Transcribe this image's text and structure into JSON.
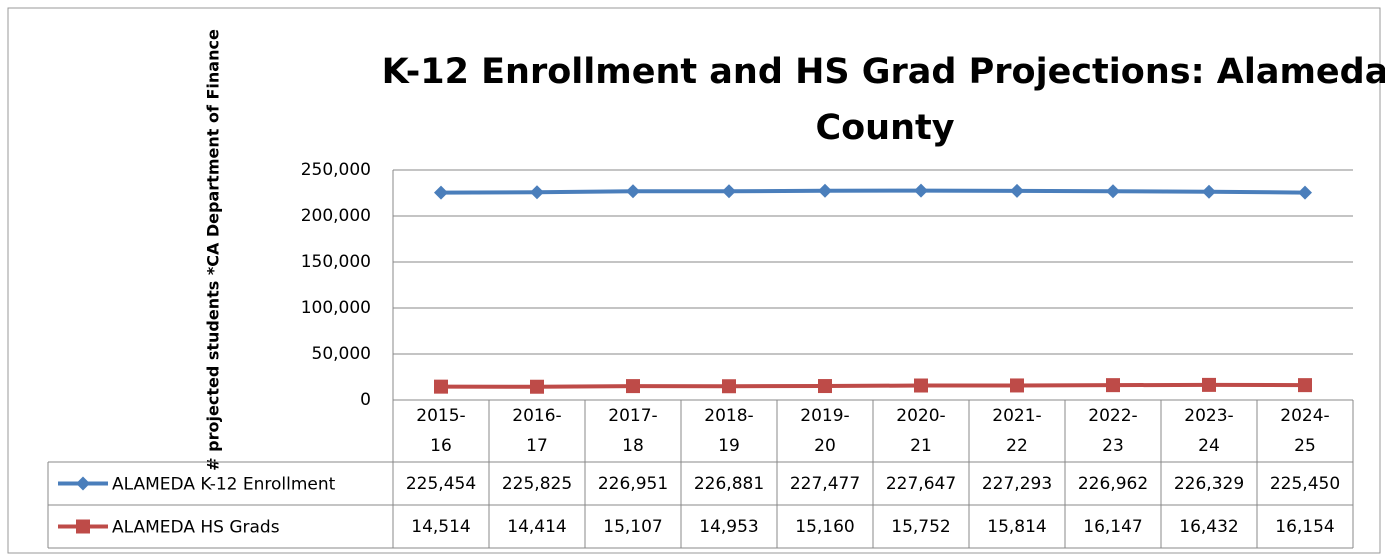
{
  "chart_data": {
    "type": "line",
    "title": "K-12 Enrollment  and HS Grad Projections: Alameda County",
    "y_label": "# projected students *CA Department of Finance",
    "categories": [
      "2015-16",
      "2016-17",
      "2017-18",
      "2018-19",
      "2019-20",
      "2020-21",
      "2021-22",
      "2022-23",
      "2023-24",
      "2024-25"
    ],
    "series": [
      {
        "name": "ALAMEDA K-12 Enrollment",
        "color": "#4a7ebb",
        "marker": "diamond",
        "values": [
          225454,
          225825,
          226951,
          226881,
          227477,
          227647,
          227293,
          226962,
          226329,
          225450
        ],
        "value_labels": [
          "225,454",
          "225,825",
          "226,951",
          "226,881",
          "227,477",
          "227,647",
          "227,293",
          "226,962",
          "226,329",
          "225,450"
        ]
      },
      {
        "name": "ALAMEDA HS Grads",
        "color": "#be4b48",
        "marker": "square",
        "values": [
          14514,
          14414,
          15107,
          14953,
          15160,
          15752,
          15814,
          16147,
          16432,
          16154
        ],
        "value_labels": [
          "14,514",
          "14,414",
          "15,107",
          "14,953",
          "15,160",
          "15,752",
          "15,814",
          "16,147",
          "16,432",
          "16,154"
        ]
      }
    ],
    "ylim": [
      0,
      250000
    ],
    "yticks": [
      0,
      {
        "value": 50000,
        "label": "50,000"
      },
      {
        "value": 100000,
        "label": "100,000"
      },
      {
        "value": 150000,
        "label": "150,000"
      },
      {
        "value": 200000,
        "label": "200,000"
      },
      {
        "value": 250000,
        "label": "250,000"
      }
    ],
    "grid": true
  }
}
